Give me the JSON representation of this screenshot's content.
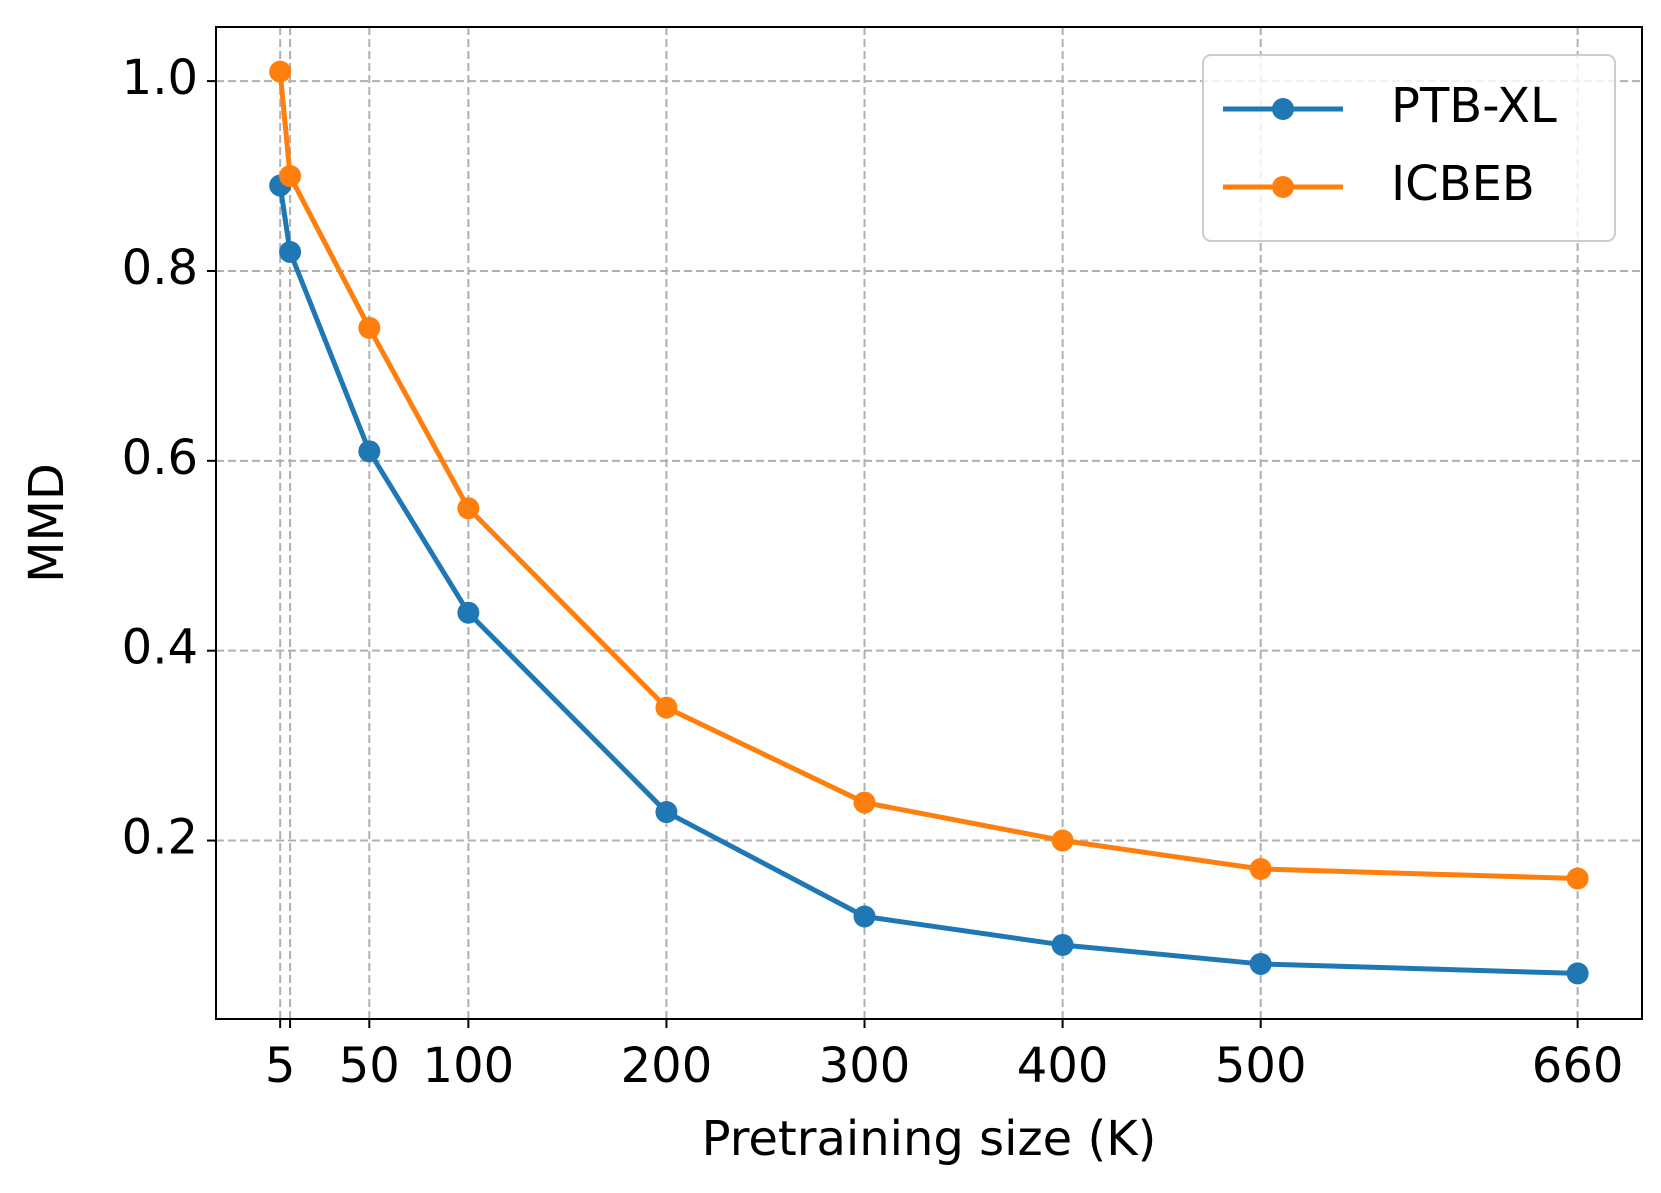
{
  "chart_data": {
    "type": "line",
    "x_label": "Pretraining size (K)",
    "y_label": "MMD",
    "x": [
      5,
      10,
      50,
      100,
      200,
      300,
      400,
      500,
      660
    ],
    "series": [
      {
        "name": "PTB-XL",
        "color": "#1f77b4",
        "values": [
          0.89,
          0.82,
          0.61,
          0.44,
          0.23,
          0.12,
          0.09,
          0.07,
          0.06
        ]
      },
      {
        "name": "ICBEB",
        "color": "#ff7f0e",
        "values": [
          1.01,
          0.9,
          0.74,
          0.55,
          0.34,
          0.24,
          0.2,
          0.17,
          0.16
        ]
      }
    ],
    "xlim": [
      -27.4,
      692.5
    ],
    "xticks": [
      5,
      {
        "value": 10,
        "label": null
      },
      50,
      100,
      200,
      300,
      400,
      500,
      660
    ],
    "ylim": [
      0.012,
      1.057
    ],
    "yticks": [
      0.2,
      0.4,
      0.6,
      0.8,
      {
        "value": 1,
        "label": "1.0"
      }
    ],
    "grid": true,
    "legend": "upper right"
  }
}
